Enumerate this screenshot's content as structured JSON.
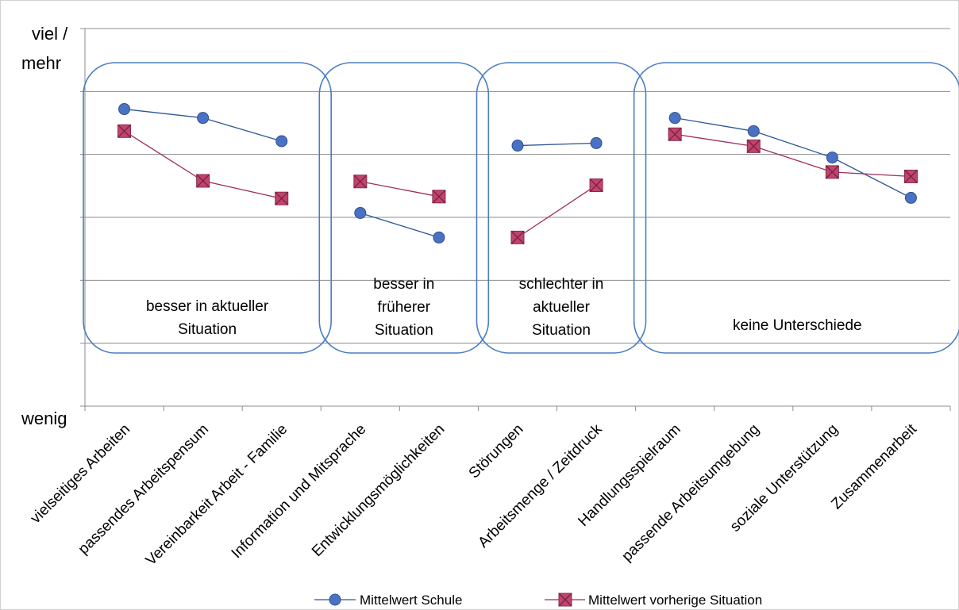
{
  "chart_data": {
    "type": "line",
    "categories": [
      "vielseitiges Arbeiten",
      "passendes Arbeitspensum",
      "Vereinbarkeit Arbeit - Familie",
      "Information und Mitsprache",
      "Entwicklungsmöglichkeiten",
      "Störungen",
      "Arbeitsmenge / Zeitdruck",
      "Handlungsspielraum",
      "passende Arbeitsumgebung",
      "soziale Unterstützung",
      "Zusammenarbeit"
    ],
    "ylabel_top_line1": "viel /",
    "ylabel_top_line2": "mehr",
    "ylabel_bottom": "wenig",
    "ylim": [
      0,
      6
    ],
    "grid": true,
    "legend_position": "bottom",
    "series": [
      {
        "name": "Mittelwert Schule",
        "color": "#2e5597",
        "marker": "circle",
        "segments": [
          [
            0,
            2
          ],
          [
            3,
            4
          ],
          [
            5,
            6
          ],
          [
            7,
            10
          ]
        ],
        "values": [
          4.72,
          4.58,
          4.21,
          3.07,
          2.68,
          4.14,
          4.18,
          4.58,
          4.37,
          3.95,
          3.31
        ]
      },
      {
        "name": "Mittelwert vorherige Situation",
        "color": "#9c2e5b",
        "marker": "square-x",
        "segments": [
          [
            0,
            2
          ],
          [
            3,
            4
          ],
          [
            5,
            6
          ],
          [
            7,
            10
          ]
        ],
        "values": [
          4.37,
          3.58,
          3.3,
          3.57,
          3.33,
          2.68,
          3.51,
          4.32,
          4.13,
          3.72,
          3.65
        ]
      }
    ],
    "groups": [
      {
        "from": 0,
        "to": 2,
        "lines": [
          "besser in aktueller",
          "Situation"
        ]
      },
      {
        "from": 3,
        "to": 4,
        "lines": [
          "besser in",
          "früherer",
          "Situation"
        ]
      },
      {
        "from": 5,
        "to": 6,
        "lines": [
          "schlechter in",
          "aktueller",
          "Situation"
        ]
      },
      {
        "from": 7,
        "to": 10,
        "lines": [
          "keine Unterschiede"
        ]
      }
    ]
  }
}
